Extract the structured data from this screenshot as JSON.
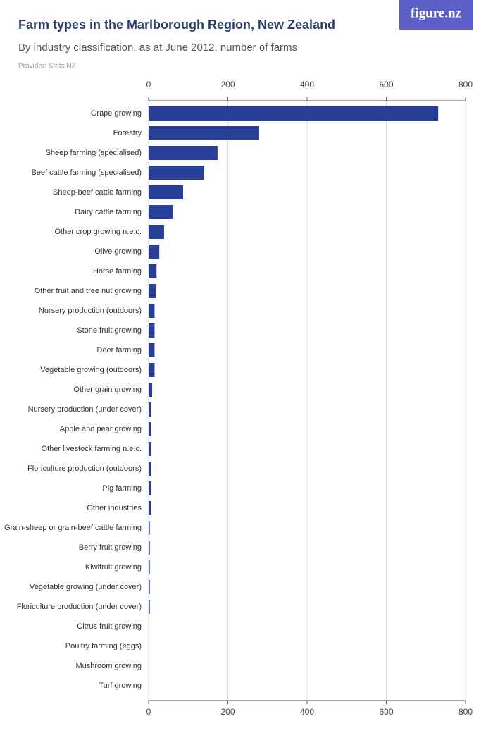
{
  "logo": "figure.nz",
  "chart_data": {
    "type": "bar",
    "orientation": "horizontal",
    "title": "Farm types in the Marlborough Region, New Zealand",
    "subtitle": "By industry classification, as at June 2012, number of farms",
    "provider": "Provider: Stats NZ",
    "categories": [
      "Grape growing",
      "Forestry",
      "Sheep farming (specialised)",
      "Beef cattle farming (specialised)",
      "Sheep-beef cattle farming",
      "Dairy cattle farming",
      "Other crop growing n.e.c.",
      "Olive growing",
      "Horse farming",
      "Other fruit and tree nut growing",
      "Nursery production (outdoors)",
      "Stone fruit growing",
      "Deer farming",
      "Vegetable growing (outdoors)",
      "Other grain growing",
      "Nursery production (under cover)",
      "Apple and pear growing",
      "Other livestock farming n.e.c.",
      "Floriculture production (outdoors)",
      "Pig farming",
      "Other industries",
      "Grain-sheep or grain-beef cattle farming",
      "Berry fruit growing",
      "Kiwifruit growing",
      "Vegetable growing (under cover)",
      "Floriculture production (under cover)",
      "Citrus fruit growing",
      "Poultry farming (eggs)",
      "Mushroom growing",
      "Turf growing"
    ],
    "values": [
      731,
      279,
      174,
      140,
      87,
      62,
      39,
      27,
      20,
      18,
      15,
      15,
      15,
      15,
      9,
      6,
      6,
      6,
      6,
      6,
      6,
      3,
      3,
      3,
      3,
      3,
      0,
      0,
      0,
      0
    ],
    "color": "#273f99",
    "xlim": [
      0,
      800
    ],
    "xticks": [
      0,
      200,
      400,
      600,
      800
    ],
    "grid": true
  }
}
